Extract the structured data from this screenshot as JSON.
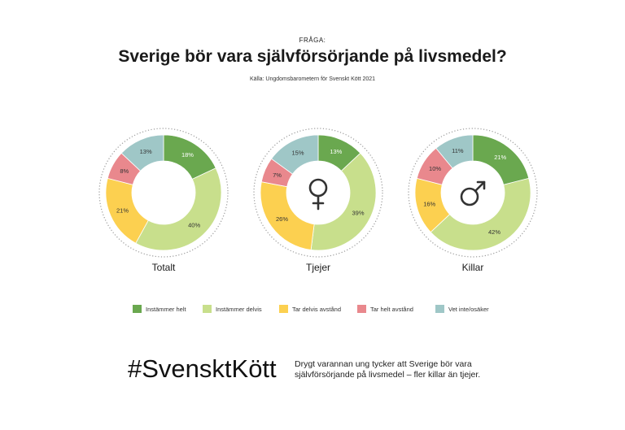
{
  "header": {
    "kicker": "FRÅGA:",
    "title": "Sverige bör vara självförsörjande på livsmedel?",
    "source": "Källa: Ungdomsbarometern för Svenskt Kött 2021"
  },
  "colors": {
    "instammer_helt": "#6aa84f",
    "instammer_delvis": "#c8df8c",
    "tar_delvis_avstand": "#fcd050",
    "tar_helt_avstand": "#e9888d",
    "vet_inte": "#9fc7c7"
  },
  "chart_data": [
    {
      "type": "pie",
      "label": "Totalt",
      "icon": "",
      "categories": [
        "Instämmer helt",
        "Instämmer delvis",
        "Tar delvis avstånd",
        "Tar helt avstånd",
        "Vet inte/osäker"
      ],
      "values": [
        18,
        40,
        21,
        8,
        13
      ]
    },
    {
      "type": "pie",
      "label": "Tjejer",
      "icon": "female-symbol-icon",
      "categories": [
        "Instämmer helt",
        "Instämmer delvis",
        "Tar delvis avstånd",
        "Tar helt avstånd",
        "Vet inte/osäker"
      ],
      "values": [
        13,
        39,
        26,
        7,
        15
      ]
    },
    {
      "type": "pie",
      "label": "Killar",
      "icon": "male-symbol-icon",
      "categories": [
        "Instämmer helt",
        "Instämmer delvis",
        "Tar delvis avstånd",
        "Tar helt avstånd",
        "Vet inte/osäker"
      ],
      "values": [
        21,
        42,
        16,
        10,
        11
      ]
    }
  ],
  "legend": {
    "items": [
      "Instämmer helt",
      "Instämmer delvis",
      "Tar delvis avstånd",
      "Tar helt avstånd",
      "Vet inte/osäker"
    ]
  },
  "footer": {
    "hashtag": "#SvensktKött",
    "line1": "Drygt varannan ung tycker att Sverige bör vara",
    "line2": "självförsörjande på livsmedel – fler killar än tjejer."
  }
}
